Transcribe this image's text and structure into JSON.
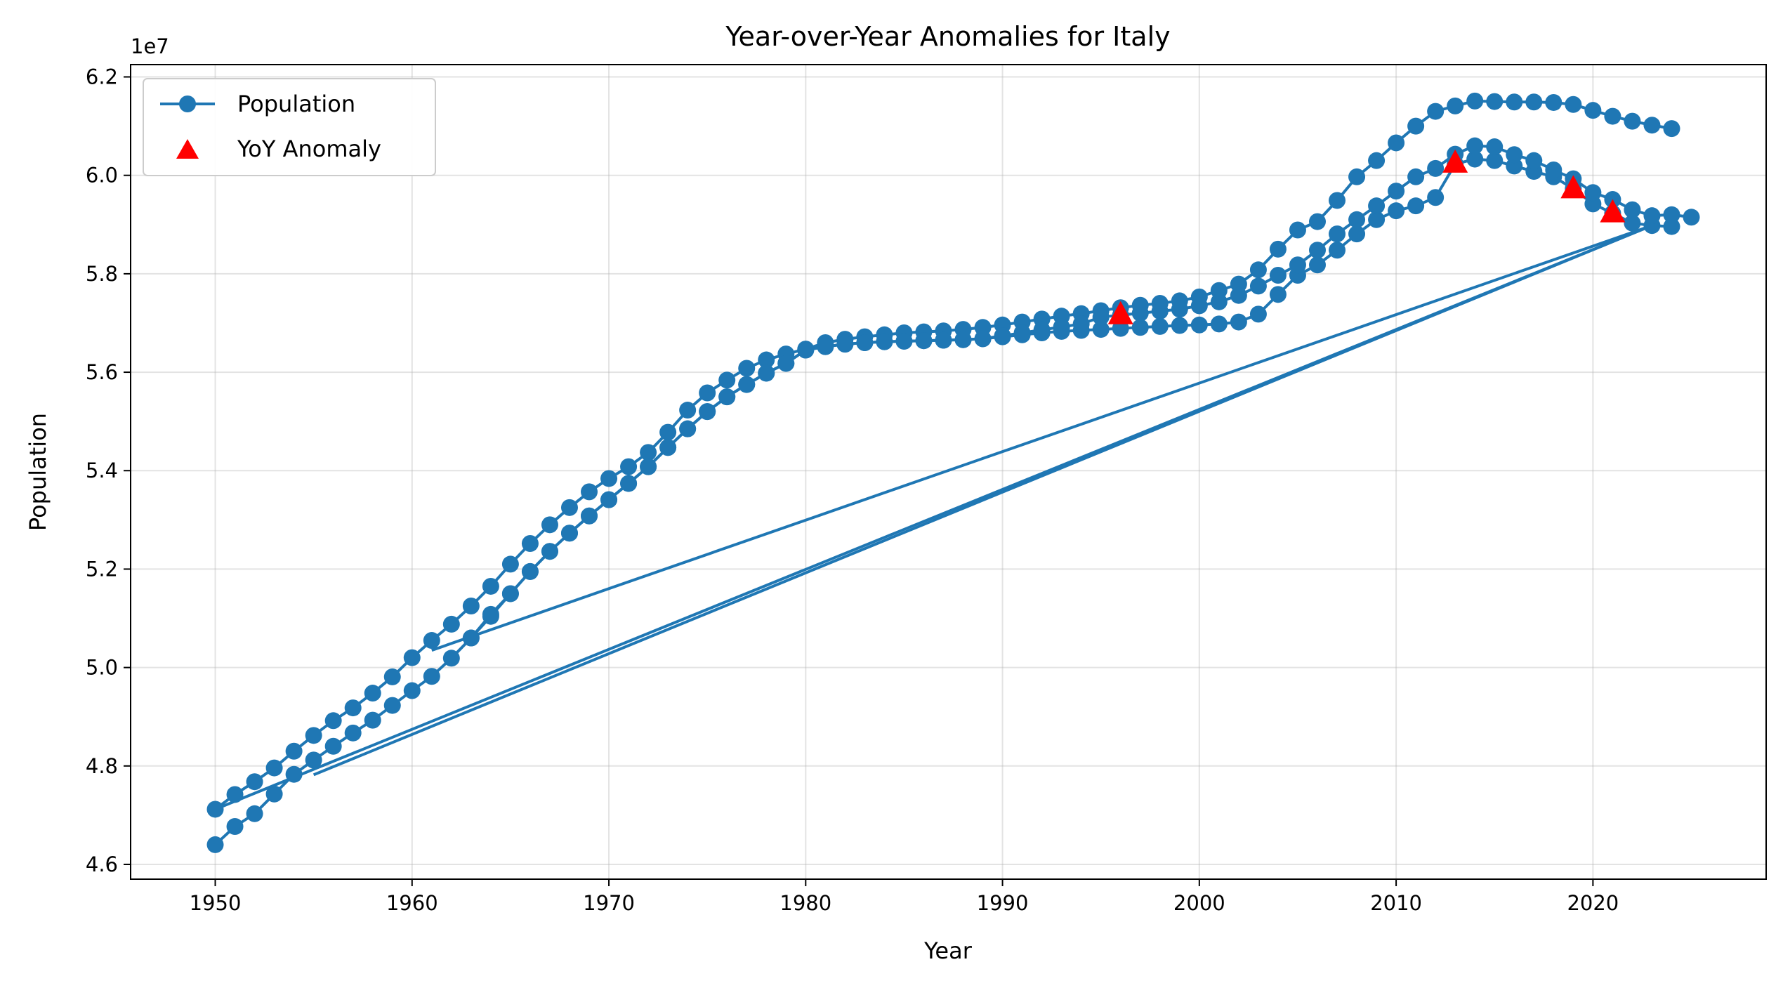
{
  "chart_data": {
    "type": "line",
    "title": "Year-over-Year Anomalies for Italy",
    "xlabel": "Year",
    "ylabel": "Population",
    "y_offset_label": "1e7",
    "xlim": [
      1945.7,
      2028.8
    ],
    "ylim": [
      4.57,
      6.225
    ],
    "x_ticks": [
      1950,
      1960,
      1970,
      1980,
      1990,
      2000,
      2010,
      2020
    ],
    "y_ticks": [
      4.6,
      4.8,
      5.0,
      5.2,
      5.4,
      5.6,
      5.8,
      6.0,
      6.2
    ],
    "y_tick_labels": [
      "4.6",
      "4.8",
      "5.0",
      "5.2",
      "5.4",
      "5.6",
      "5.8",
      "6.0",
      "6.2"
    ],
    "grid": true,
    "legend_position": "top-left",
    "series": [
      {
        "name": "Population",
        "color": "#1f77b4",
        "marker": "circle",
        "segments": [
          {
            "x": [
              1950,
              1951,
              1952,
              1953,
              1954,
              1955,
              1956,
              1957,
              1958,
              1959,
              1960,
              1961,
              1962,
              1963,
              1964,
              1965,
              1966,
              1967,
              1968,
              1969,
              1970,
              1971,
              1972,
              1973,
              1974,
              1975,
              1976,
              1977,
              1978,
              1979,
              1980,
              1981,
              1982,
              1983,
              1984,
              1985,
              1986,
              1987,
              1988,
              1989,
              1990,
              1991,
              1992,
              1993,
              1994,
              1995,
              1996,
              1997,
              1998,
              1999,
              2000,
              2001,
              2002,
              2003,
              2004,
              2005,
              2006,
              2007,
              2008,
              2009,
              2010,
              2011,
              2012,
              2013,
              2014,
              2015,
              2016,
              2017,
              2018,
              2019,
              2020,
              2021,
              2022,
              2023,
              2024
            ],
            "y": [
              4.64,
              4.677,
              4.703,
              4.743,
              4.783,
              4.812,
              4.84,
              4.867,
              4.893,
              4.923,
              4.953,
              4.982,
              5.019,
              5.06,
              5.104,
              5.15,
              5.195,
              5.236,
              5.273,
              5.308,
              5.341,
              5.374,
              5.408,
              5.447,
              5.485,
              5.52,
              5.55,
              5.575,
              5.598,
              5.618,
              5.645,
              5.652,
              5.657,
              5.66,
              5.662,
              5.663,
              5.664,
              5.665,
              5.666,
              5.668,
              5.672,
              5.676,
              5.68,
              5.683,
              5.685,
              5.687,
              5.689,
              5.691,
              5.693,
              5.695,
              5.696,
              5.698,
              5.702,
              5.718,
              5.758,
              5.797,
              5.818,
              5.848,
              5.881,
              5.91,
              5.928,
              5.938,
              5.955,
              6.023,
              6.033,
              6.03,
              6.019,
              6.008,
              5.997,
              5.973,
              5.942,
              5.923,
              5.903,
              5.898,
              5.896
            ]
          },
          {
            "x": [
              1950,
              1951,
              1952,
              1953,
              1954,
              1955,
              1956,
              1957,
              1958,
              1959,
              1960,
              1961,
              1962,
              1963,
              1964,
              1965,
              1966,
              1967,
              1968,
              1969,
              1970,
              1971,
              1972,
              1973,
              1974,
              1975,
              1976,
              1977,
              1978,
              1979,
              1980,
              1981,
              1982,
              1983,
              1984,
              1985,
              1986,
              1987,
              1988,
              1989,
              1990,
              1991,
              1992,
              1993,
              1994,
              1995,
              1996,
              1997,
              1998,
              1999,
              2000,
              2001,
              2002,
              2003,
              2004,
              2005,
              2006,
              2007,
              2008,
              2009,
              2010,
              2011,
              2012,
              2013,
              2014,
              2015,
              2016,
              2017,
              2018,
              2019,
              2020,
              2021,
              2022,
              2023,
              2024
            ],
            "y": [
              4.712,
              4.742,
              4.768,
              4.796,
              4.83,
              4.862,
              4.892,
              4.918,
              4.948,
              4.981,
              5.02,
              5.055,
              5.088,
              5.125,
              5.165,
              5.21,
              5.252,
              5.29,
              5.325,
              5.357,
              5.384,
              5.408,
              5.437,
              5.478,
              5.523,
              5.558,
              5.584,
              5.608,
              5.625,
              5.637,
              5.647,
              5.66,
              5.667,
              5.672,
              5.676,
              5.68,
              5.682,
              5.684,
              5.687,
              5.691,
              5.696,
              5.702,
              5.708,
              5.714,
              5.719,
              5.725,
              5.731,
              5.736,
              5.74,
              5.745,
              5.753,
              5.766,
              5.779,
              5.808,
              5.85,
              5.889,
              5.906,
              5.949,
              5.997,
              6.03,
              6.066,
              6.1,
              6.13,
              6.141,
              6.151,
              6.15,
              6.149,
              6.149,
              6.148,
              6.144,
              6.132,
              6.12,
              6.11,
              6.102,
              6.095
            ]
          },
          {
            "x": [
              1963,
              1964,
              1965,
              1966,
              1967,
              1968,
              1969,
              1970,
              1971,
              1972,
              1973,
              1974,
              1975,
              1976,
              1977,
              1978,
              1979,
              1980,
              1981,
              1982,
              1983,
              1984,
              1985,
              1986,
              1987,
              1988,
              1989,
              1990,
              1991,
              1992,
              1993,
              1994,
              1995,
              1996,
              1997,
              1998,
              1999,
              2000,
              2001,
              2002,
              2003,
              2004,
              2005,
              2006,
              2007,
              2008,
              2009,
              2010,
              2011,
              2012,
              2013,
              2014,
              2015,
              2016,
              2017,
              2018,
              2019,
              2020,
              2021,
              2022,
              2023,
              2024,
              2025
            ],
            "y": [
              5.06,
              5.108,
              5.15,
              5.195,
              5.236,
              5.273,
              5.308,
              5.341,
              5.374,
              5.408,
              5.447,
              5.485,
              5.52,
              5.55,
              5.575,
              5.598,
              5.618,
              5.645,
              5.652,
              5.657,
              5.66,
              5.662,
              5.663,
              5.664,
              5.665,
              5.666,
              5.668,
              5.674,
              5.68,
              5.686,
              5.692,
              5.698,
              5.712,
              5.716,
              5.72,
              5.724,
              5.728,
              5.735,
              5.743,
              5.756,
              5.775,
              5.797,
              5.818,
              5.848,
              5.881,
              5.91,
              5.938,
              5.968,
              5.997,
              6.014,
              6.043,
              6.06,
              6.058,
              6.042,
              6.03,
              6.011,
              5.993,
              5.965,
              5.951,
              5.93,
              5.918,
              5.92,
              5.915
            ]
          },
          {
            "x": [
              1955,
              2023
            ],
            "y": [
              4.782,
              5.898
            ]
          },
          {
            "x": [
              1950,
              2023
            ],
            "y": [
              4.712,
              5.898
            ]
          },
          {
            "x": [
              1961,
              2023
            ],
            "y": [
              5.035,
              5.898
            ]
          }
        ]
      },
      {
        "name": "YoY Anomaly",
        "color": "#ff0000",
        "marker": "triangle",
        "x": [
          1996,
          2013,
          2019,
          2021
        ],
        "y": [
          5.716,
          6.024,
          5.972,
          5.923
        ]
      }
    ]
  }
}
